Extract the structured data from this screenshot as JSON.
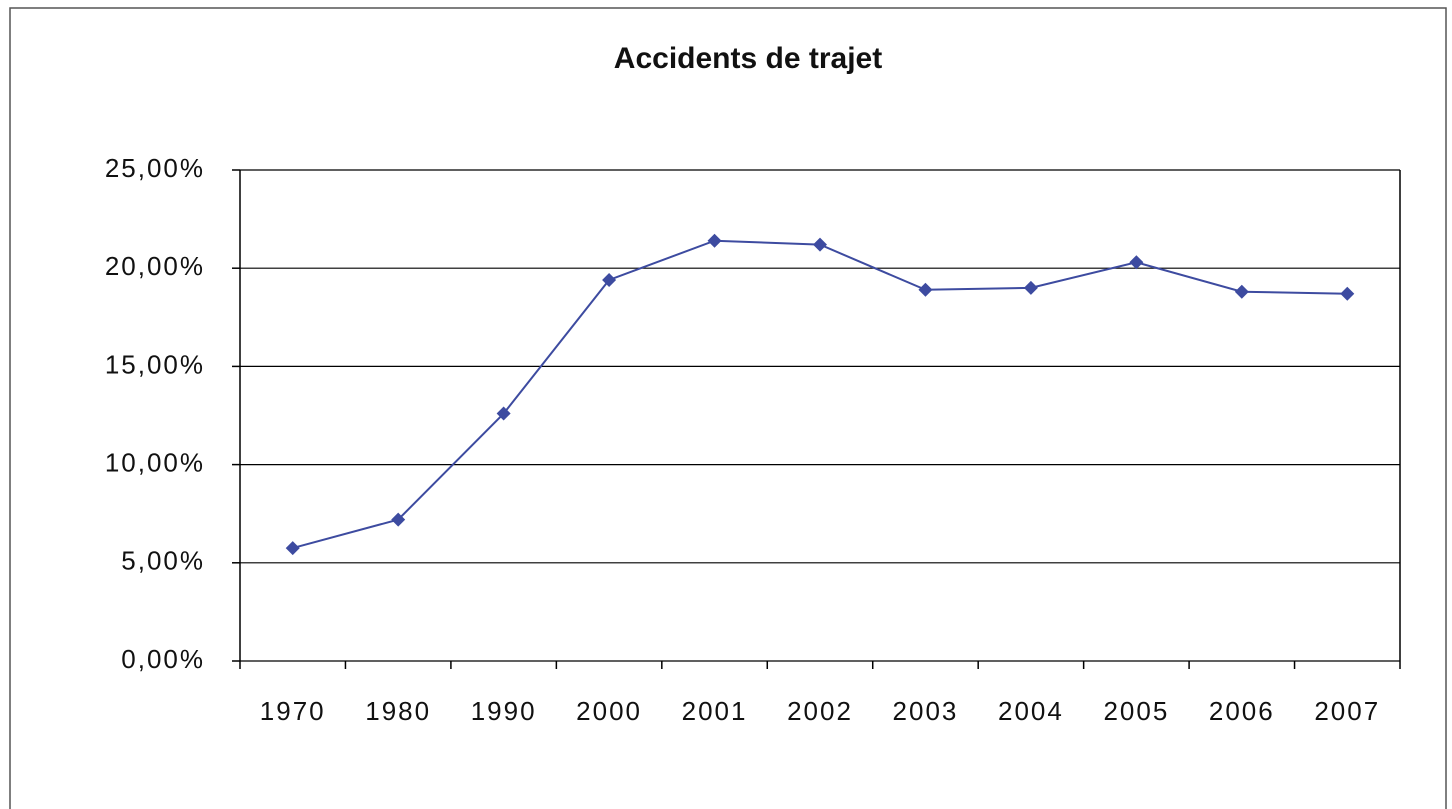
{
  "chart_data": {
    "type": "line",
    "title": "Accidents de trajet",
    "categories": [
      "1970",
      "1980",
      "1990",
      "2000",
      "2001",
      "2002",
      "2003",
      "2004",
      "2005",
      "2006",
      "2007"
    ],
    "series": [
      {
        "name": "Accidents de trajet",
        "color": "#3d4ba0",
        "values": [
          5.75,
          7.2,
          12.6,
          19.4,
          21.4,
          21.2,
          18.9,
          19.0,
          20.3,
          18.8,
          18.7
        ]
      }
    ],
    "ylim": [
      0,
      25
    ],
    "yticks": [
      {
        "value": 0,
        "label": "0,00%"
      },
      {
        "value": 5,
        "label": "5,00%"
      },
      {
        "value": 10,
        "label": "10,00%"
      },
      {
        "value": 15,
        "label": "15,00%"
      },
      {
        "value": 20,
        "label": "20,00%"
      },
      {
        "value": 25,
        "label": "25,00%"
      }
    ],
    "grid": true
  }
}
